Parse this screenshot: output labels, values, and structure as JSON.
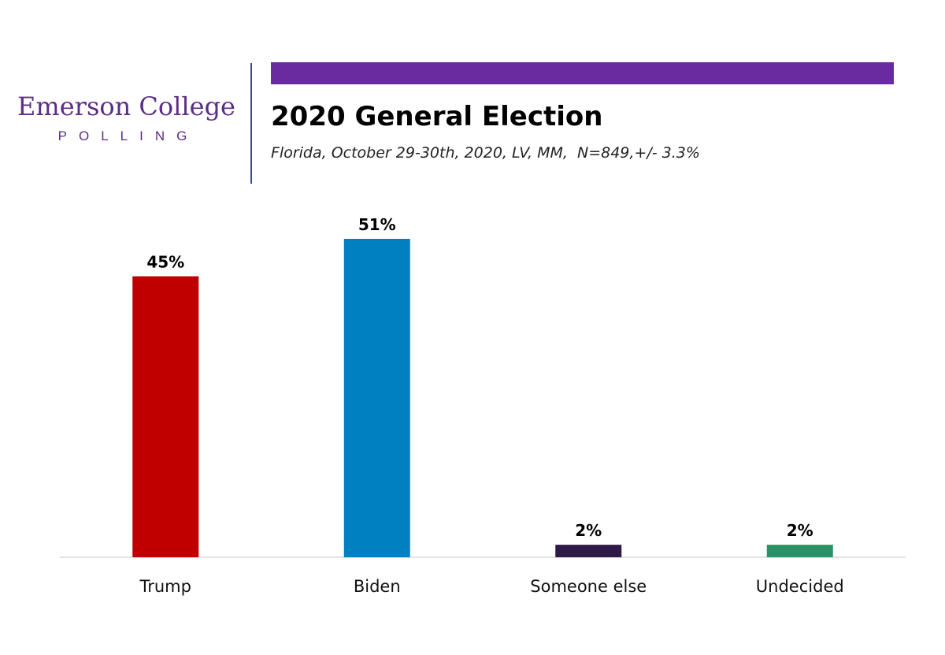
{
  "logo": {
    "line1": "Emerson College",
    "line2": "POLLING"
  },
  "colors": {
    "brand_purple": "#6a2aa0",
    "logo_purple": "#5b2d86",
    "divider": "#3b4a8a"
  },
  "chart_data": {
    "type": "bar",
    "title": "2020 General Election",
    "subtitle": "Florida, October 29-30th, 2020, LV, MM,  N=849,+/- 3.3%",
    "categories": [
      "Trump",
      "Biden",
      "Someone else",
      "Undecided"
    ],
    "values": [
      45,
      51,
      2,
      2
    ],
    "data_labels": [
      "45%",
      "51%",
      "2%",
      "2%"
    ],
    "bar_colors": [
      "#c00000",
      "#0080c0",
      "#2e1a47",
      "#2a9065"
    ],
    "ylim": [
      0,
      51
    ],
    "grid": false,
    "legend": "none"
  }
}
